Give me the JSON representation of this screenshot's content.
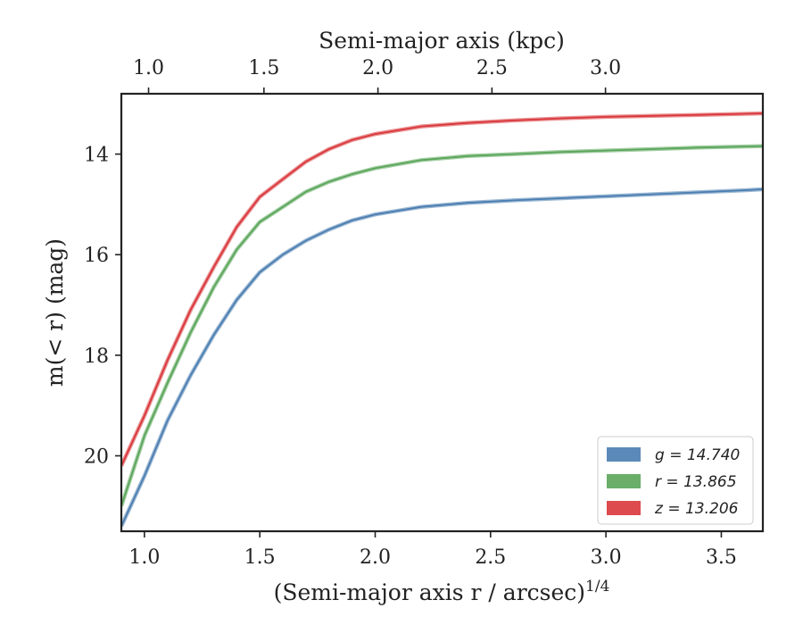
{
  "chart_data": {
    "type": "line",
    "xlabel": "(Semi-major axis r / arcsec)",
    "xlabel_superscript": "1/4",
    "ylabel": "m(< r) (mag)",
    "top_xlabel": "Semi-major axis (kpc)",
    "xlim": [
      0.9,
      3.68
    ],
    "ylim": [
      21.5,
      12.8
    ],
    "y_inverted": true,
    "x_ticks": [
      "1.0",
      "1.5",
      "2.0",
      "2.5",
      "3.0",
      "3.5"
    ],
    "y_ticks": [
      "14",
      "16",
      "18",
      "20"
    ],
    "top_x_ticks": [
      "1.0",
      "1.5",
      "2.0",
      "2.5",
      "3.0"
    ],
    "top_x_tick_positions_bottom_units": [
      1.018,
      1.518,
      2.012,
      2.506,
      2.998
    ],
    "legend_position": "lower-right",
    "grid": false,
    "series": [
      {
        "name": "g = 14.740",
        "color": "#4a7db0",
        "x": [
          0.9,
          1.0,
          1.1,
          1.2,
          1.3,
          1.4,
          1.5,
          1.6,
          1.7,
          1.8,
          1.9,
          2.0,
          2.2,
          2.4,
          2.6,
          2.8,
          3.0,
          3.2,
          3.4,
          3.6,
          3.68
        ],
        "y": [
          21.4,
          20.4,
          19.3,
          18.4,
          17.6,
          16.9,
          16.35,
          16.0,
          15.72,
          15.5,
          15.32,
          15.2,
          15.05,
          14.97,
          14.92,
          14.88,
          14.84,
          14.8,
          14.76,
          14.72,
          14.7
        ]
      },
      {
        "name": "r = 13.865",
        "color": "#5aa55a",
        "x": [
          0.9,
          1.0,
          1.1,
          1.2,
          1.3,
          1.4,
          1.5,
          1.6,
          1.7,
          1.8,
          1.9,
          2.0,
          2.2,
          2.4,
          2.6,
          2.8,
          3.0,
          3.2,
          3.4,
          3.6,
          3.68
        ],
        "y": [
          21.0,
          19.6,
          18.55,
          17.55,
          16.65,
          15.9,
          15.35,
          15.05,
          14.75,
          14.55,
          14.4,
          14.28,
          14.12,
          14.04,
          14.0,
          13.96,
          13.93,
          13.9,
          13.87,
          13.85,
          13.84
        ]
      },
      {
        "name": "z = 13.206",
        "color": "#d9373b",
        "x": [
          0.9,
          1.0,
          1.1,
          1.2,
          1.3,
          1.4,
          1.5,
          1.6,
          1.7,
          1.8,
          1.9,
          2.0,
          2.2,
          2.4,
          2.6,
          2.8,
          3.0,
          3.2,
          3.4,
          3.6,
          3.68
        ],
        "y": [
          20.2,
          19.2,
          18.1,
          17.1,
          16.25,
          15.45,
          14.85,
          14.5,
          14.15,
          13.9,
          13.72,
          13.6,
          13.45,
          13.38,
          13.33,
          13.29,
          13.26,
          13.24,
          13.22,
          13.2,
          13.19
        ]
      }
    ],
    "legend": [
      {
        "label": "g = 14.740",
        "color": "#4a7db0"
      },
      {
        "label": "r = 13.865",
        "color": "#5aa55a"
      },
      {
        "label": "z = 13.206",
        "color": "#d9373b"
      }
    ]
  }
}
